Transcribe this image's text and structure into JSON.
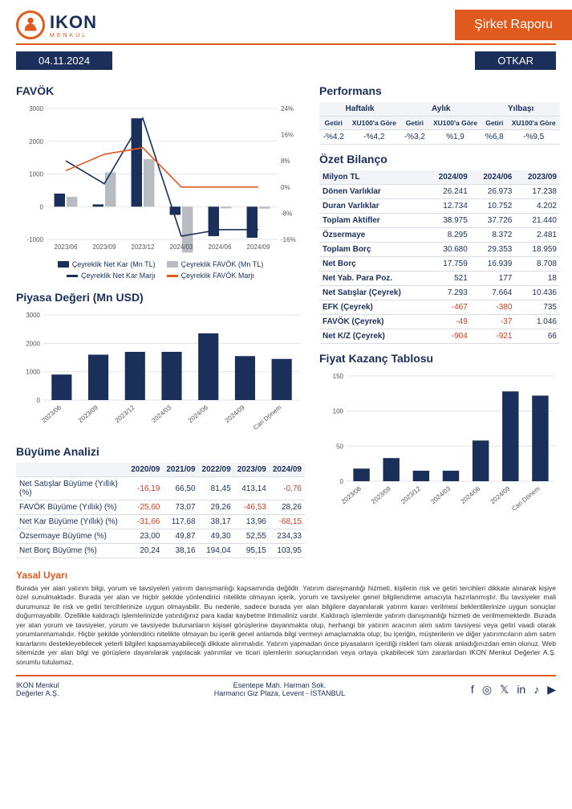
{
  "brand": {
    "name": "IKON",
    "sub": "MENKUL"
  },
  "banner": "Şirket Raporu",
  "date": "04.11.2024",
  "ticker": "OTKAR",
  "colors": {
    "navy": "#1a2f5a",
    "orange": "#e15a1d",
    "grey": "#b8bcc2",
    "grid": "#e4e6ea",
    "neg": "#d13b1f"
  },
  "favok": {
    "title": "FAVÖK",
    "categories": [
      "2023/06",
      "2023/09",
      "2023/12",
      "2024/03",
      "2024/06",
      "2024/09"
    ],
    "bar_netkar": [
      400,
      70,
      2700,
      -250,
      -900,
      -950
    ],
    "bar_favok": [
      300,
      1050,
      1450,
      -1400,
      -50,
      -60
    ],
    "line_netkar_marji": [
      8,
      1,
      21,
      -15,
      -13,
      -13
    ],
    "line_favok_marji": [
      5,
      10,
      12,
      0,
      0,
      0
    ],
    "y_left": {
      "min": -1000,
      "max": 3000,
      "step": 1000
    },
    "y_right": {
      "min": -16,
      "max": 24,
      "step": 8
    },
    "legend": {
      "bar1": "Çeyreklik Net Kar (Mn TL)",
      "bar2": "Çeyreklik FAVÖK (Mn TL)",
      "line1": "Çeyreklik Net Kar Marjı",
      "line2": "Çeyreklik FAVÖK Marjı"
    }
  },
  "piyasa": {
    "title": "Piyasa Değeri (Mn USD)",
    "categories": [
      "2023/06",
      "2023/09",
      "2023/12",
      "2024/03",
      "2024/06",
      "2024/09",
      "Cari Dönem"
    ],
    "values": [
      900,
      1600,
      1700,
      1700,
      2350,
      1550,
      1450
    ],
    "ylim": {
      "min": 0,
      "max": 3000,
      "step": 1000
    }
  },
  "buyume": {
    "title": "Büyüme Analizi",
    "cols": [
      "",
      "2020/09",
      "2021/09",
      "2022/09",
      "2023/09",
      "2024/09"
    ],
    "rows": [
      [
        "Net Satışlar Büyüme (Yıllık) (%)",
        "-16,19",
        "66,50",
        "81,45",
        "413,14",
        "-0,76"
      ],
      [
        "FAVÖK Büyüme (Yıllık) (%)",
        "-25,60",
        "73,07",
        "29,26",
        "-46,53",
        "28,26"
      ],
      [
        "Net Kar Büyüme (Yıllık) (%)",
        "-31,66",
        "117,68",
        "38,17",
        "13,96",
        "-68,15"
      ],
      [
        "Özsermaye Büyüme (%)",
        "23,00",
        "49,87",
        "49,30",
        "52,55",
        "234,33"
      ],
      [
        "Net Borç Büyüme (%)",
        "20,24",
        "38,16",
        "194,04",
        "95,15",
        "103,95"
      ]
    ]
  },
  "perf": {
    "title": "Performans",
    "head1": [
      "Haftalık",
      "Aylık",
      "Yılbaşı"
    ],
    "head2": [
      "Getiri",
      "XU100'a Göre",
      "Getiri",
      "XU100'a Göre",
      "Getiri",
      "XU100'a Göre"
    ],
    "row": [
      "-%4,2",
      "-%4,2",
      "-%3,2",
      "%1,9",
      "%6,8",
      "-%9,5"
    ]
  },
  "bilanco": {
    "title": "Özet Bilanço",
    "cols": [
      "Milyon TL",
      "2024/09",
      "2024/06",
      "2023/09"
    ],
    "rows": [
      [
        "Dönen Varlıklar",
        "26.241",
        "26.973",
        "17.238"
      ],
      [
        "Duran Varlıklar",
        "12.734",
        "10.752",
        "4.202"
      ],
      [
        "Toplam Aktifler",
        "38.975",
        "37.726",
        "21.440"
      ],
      [
        "Özsermaye",
        "8.295",
        "8.372",
        "2.481"
      ],
      [
        "Toplam Borç",
        "30.680",
        "29.353",
        "18.959"
      ],
      [
        "Net Borç",
        "17.759",
        "16.939",
        "8.708"
      ],
      [
        "Net Yab. Para Poz.",
        "521",
        "177",
        "18"
      ],
      [
        "Net Satışlar (Çeyrek)",
        "7.293",
        "7.664",
        "10.436"
      ],
      [
        "EFK (Çeyrek)",
        "-467",
        "-380",
        "735"
      ],
      [
        "FAVÖK (Çeyrek)",
        "-49",
        "-37",
        "1.046"
      ],
      [
        "Net K/Z (Çeyrek)",
        "-904",
        "-921",
        "66"
      ]
    ]
  },
  "fiyat": {
    "title": "Fiyat Kazanç Tablosu",
    "categories": [
      "2023/06",
      "2023/09",
      "2023/12",
      "2024/03",
      "2024/06",
      "2024/09",
      "Cari Dönem"
    ],
    "values": [
      18,
      33,
      15,
      15,
      58,
      128,
      122
    ],
    "ylim": {
      "min": 0,
      "max": 150,
      "step": 50
    }
  },
  "legal": {
    "title": "Yasal Uyarı",
    "text": "Burada yer alan yatırım bilgi, yorum ve tavsiyeleri yatırım danışmanlığı kapsamında değildir. Yatırım danışmanlığı hizmeti, kişilerin risk ve getiri tercihleri dikkate alınarak kişiye özel sunulmaktadır. Burada yer alan ve hiçbir şekilde yönlendirici nitelikte olmayan içerik, yorum ve tavsiyeler genel bilgilendirme amacıyla hazırlanmıştır. Bu tavsiyeler mali durumunuz ile risk ve getiri tercihlerinize uygun olmayabilir. Bu nedenle, sadece burada yer alan bilgilere dayanılarak yatırım kararı verilmesi beklentilerinize uygun sonuçlar doğurmayabilir. Özellikle kaldıraçlı işlemlerinizde yatırdığınız para kadar kaybetme ihtimaliniz vardır. Kaldıraçlı işlemlerde yatırım danışmanlığı hizmeti de verilmemektedir. Burada yer alan yorum ve tavsiyeler, yorum ve tavsiyede bulunanların kişisel görüşlerine dayanmakta olup, herhangi bir yatırım aracının alım satım tavsiyesi veya getiri vaadi olarak yorumlanmamalıdır. Hiçbir şekilde yönlendirici nitelikte olmayan bu içerik genel anlamda bilgi vermeyi amaçlamakta olup; bu içeriğin, müşterilerin ve diğer yatırımcıların alım satım kararlarını destekleyebilecek yeterli bilgileri kapsamayabileceği dikkate alınmalıdır. Yatırım yapmadan önce piyasaların içerdiği riskleri tam olarak anladığınızdan emin olunuz. Web sitemizde yer alan bilgi ve görüşlere dayanılarak yapılacak yatırımlar ve ticari işlemlerin sonuçlarından veya ortaya çıkabilecek tüm zararlardan IKON Menkul Değerler A.Ş. sorumlu tutulamaz."
  },
  "footer": {
    "left": "IKON Menkul Değerler A.Ş.",
    "mid1": "Esentepe Mah. Harman Sok.",
    "mid2": "Harmancı Giz Plaza, Levent - İSTANBUL"
  }
}
